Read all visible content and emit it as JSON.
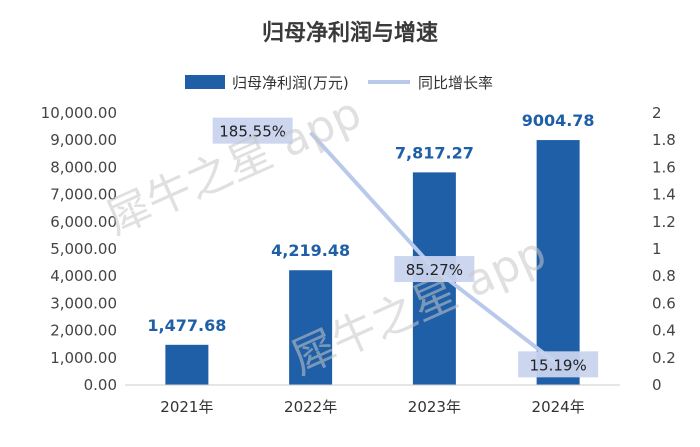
{
  "chart_data": {
    "type": "bar",
    "title": "归母净利润与增速",
    "categories": [
      "2021年",
      "2022年",
      "2023年",
      "2024年"
    ],
    "series": [
      {
        "name": "归母净利润(万元)",
        "type": "bar",
        "axis": "left",
        "values": [
          1477.68,
          4219.48,
          7817.27,
          9004.78
        ],
        "labels": [
          "1,477.68",
          "4,219.48",
          "7,817.27",
          "9004.78"
        ],
        "color": "#1f5fa8"
      },
      {
        "name": "同比增长率",
        "type": "line",
        "axis": "right",
        "values": [
          null,
          1.8555,
          0.8527,
          0.1519
        ],
        "labels": [
          "",
          "185.55%",
          "85.27%",
          "15.19%"
        ],
        "color": "#b9c9ec"
      }
    ],
    "ylim_left": [
      0,
      10000
    ],
    "yticks_left": [
      "0.00",
      "1,000.00",
      "2,000.00",
      "3,000.00",
      "4,000.00",
      "5,000.00",
      "6,000.00",
      "7,000.00",
      "8,000.00",
      "9,000.00",
      "10,000.00"
    ],
    "ylim_right": [
      0,
      2
    ],
    "yticks_right": [
      "0",
      "0.2",
      "0.4",
      "0.6",
      "0.8",
      "1",
      "1.2",
      "1.4",
      "1.6",
      "1.8",
      "2"
    ],
    "legend": "top-center",
    "grid": false
  },
  "watermark": "犀牛之星 app"
}
